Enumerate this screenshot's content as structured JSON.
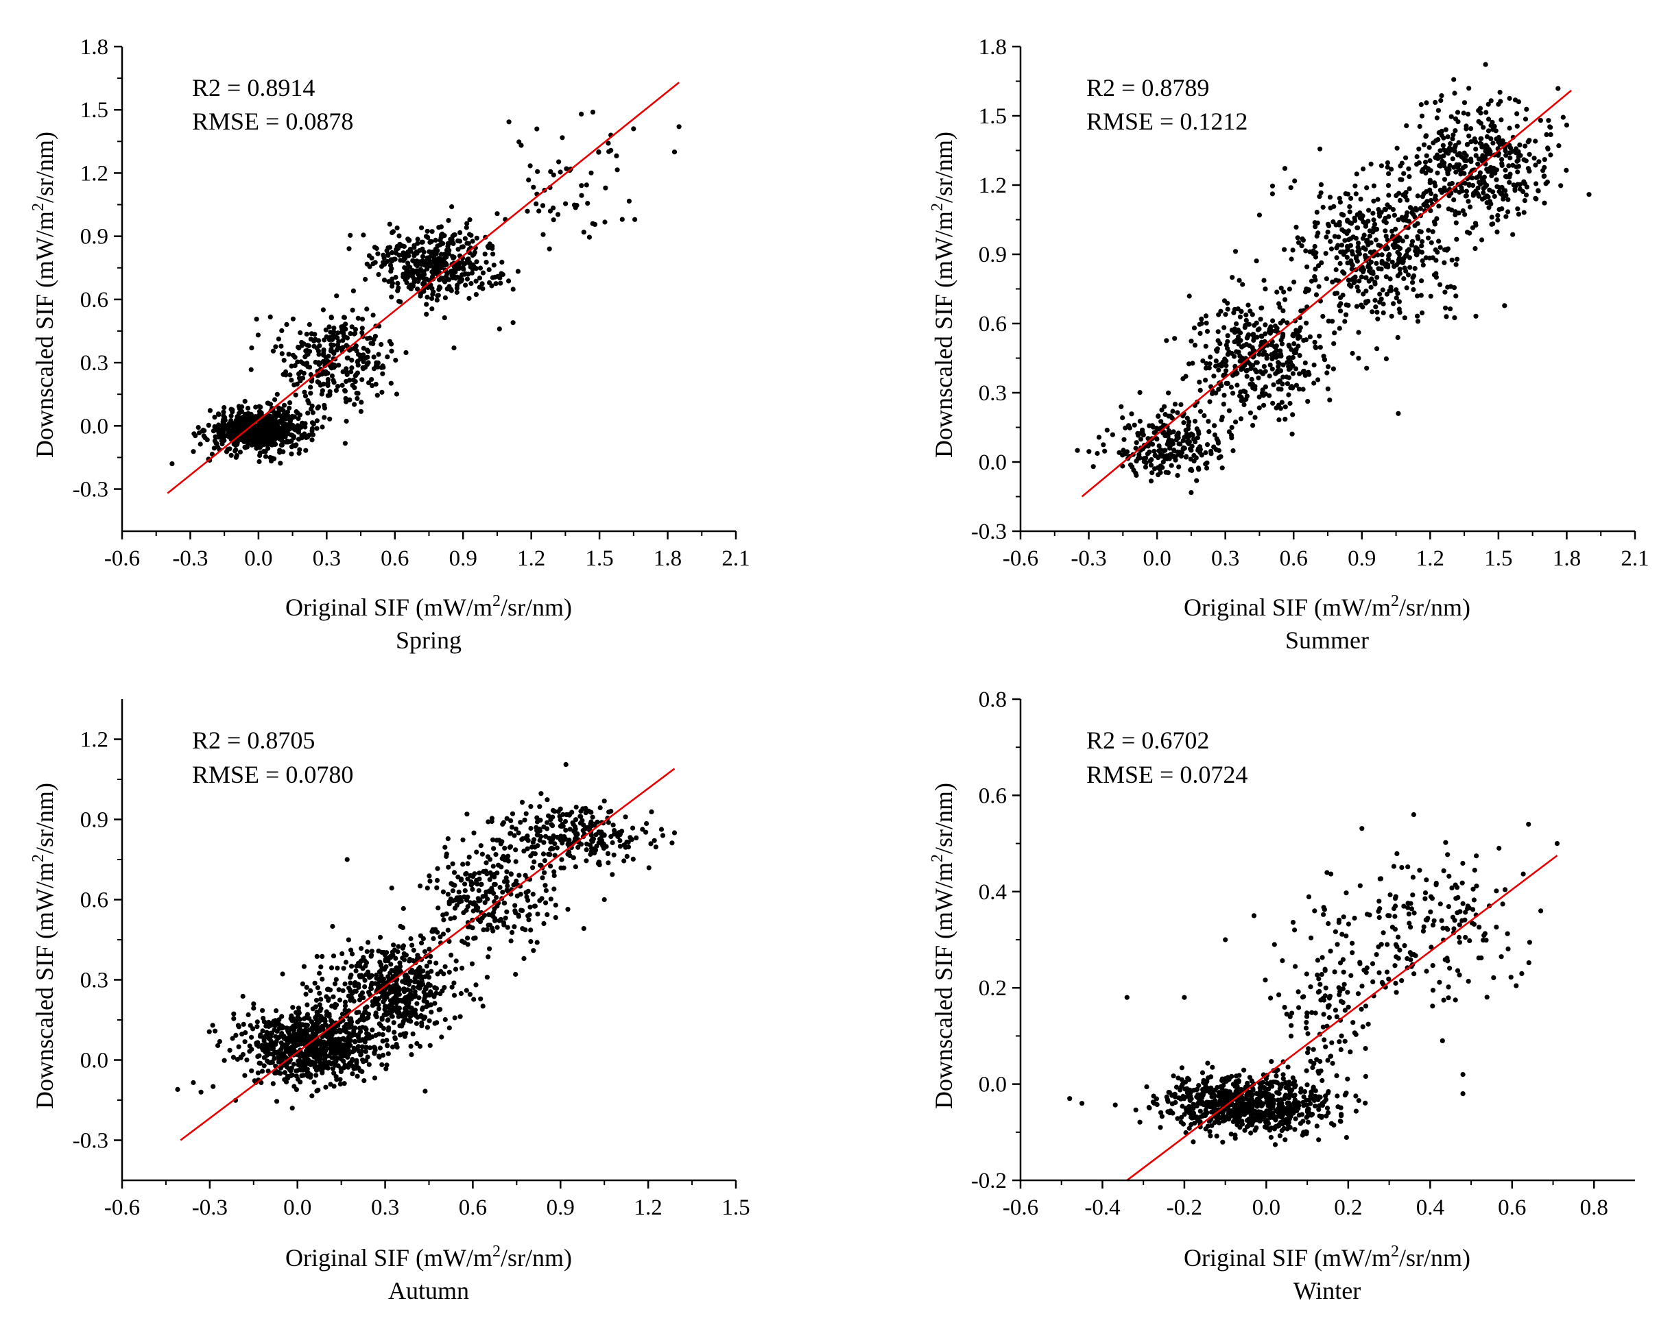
{
  "chart_data": [
    {
      "type": "scatter",
      "caption": "Spring",
      "xlabel": "Original SIF (mW/m²/sr/nm)",
      "ylabel": "Downscaled SIF (mW/m²/sr/nm)",
      "stats": {
        "r2": "R2 = 0.8914",
        "rmse": "RMSE = 0.0878"
      },
      "xlim": [
        -0.6,
        2.1
      ],
      "ylim": [
        -0.5,
        1.8
      ],
      "xticks": [
        -0.6,
        -0.3,
        0.0,
        0.3,
        0.6,
        0.9,
        1.2,
        1.5,
        1.8,
        2.1
      ],
      "xtick_labels": [
        "-0.6",
        "-0.3",
        "0.0",
        "0.3",
        "0.6",
        "0.9",
        "1.2",
        "1.5",
        "1.8",
        "2.1"
      ],
      "yticks": [
        -0.3,
        0.0,
        0.3,
        0.6,
        0.9,
        1.2,
        1.5,
        1.8
      ],
      "ytick_labels": [
        "-0.3",
        "0.0",
        "0.3",
        "0.6",
        "0.9",
        "1.2",
        "1.5",
        "1.8"
      ],
      "fit_line": {
        "x": [
          -0.4,
          1.85
        ],
        "y": [
          -0.32,
          1.63
        ]
      },
      "clusters": [
        {
          "cx": 0.0,
          "cy": -0.02,
          "sx": 0.11,
          "sy": 0.05,
          "n": 650
        },
        {
          "cx": 0.35,
          "cy": 0.32,
          "sx": 0.12,
          "sy": 0.12,
          "n": 300
        },
        {
          "cx": 0.78,
          "cy": 0.77,
          "sx": 0.14,
          "sy": 0.08,
          "n": 420
        },
        {
          "cx": 1.35,
          "cy": 1.15,
          "sx": 0.2,
          "sy": 0.17,
          "n": 55
        }
      ],
      "points": [
        [
          1.42,
          1.48
        ],
        [
          1.85,
          1.42
        ],
        [
          1.83,
          1.3
        ],
        [
          1.65,
          1.41
        ],
        [
          1.55,
          1.38
        ],
        [
          1.6,
          0.98
        ],
        [
          1.47,
          0.96
        ],
        [
          1.28,
          0.84
        ],
        [
          1.12,
          0.49
        ],
        [
          1.06,
          0.46
        ],
        [
          0.86,
          0.37
        ],
        [
          -0.38,
          -0.18
        ],
        [
          0.85,
          1.04
        ],
        [
          -0.03,
          0.37
        ]
      ]
    },
    {
      "type": "scatter",
      "caption": "Summer",
      "xlabel": "Original SIF (mW/m²/sr/nm)",
      "ylabel": "Downscaled SIF (mW/m²/sr/nm)",
      "stats": {
        "r2": "R2 = 0.8789",
        "rmse": "RMSE = 0.1212"
      },
      "xlim": [
        -0.6,
        2.1
      ],
      "ylim": [
        -0.3,
        1.8
      ],
      "xticks": [
        -0.6,
        -0.3,
        0.0,
        0.3,
        0.6,
        0.9,
        1.2,
        1.5,
        1.8,
        2.1
      ],
      "xtick_labels": [
        "-0.6",
        "-0.3",
        "0.0",
        "0.3",
        "0.6",
        "0.9",
        "1.2",
        "1.5",
        "1.8",
        "2.1"
      ],
      "yticks": [
        -0.3,
        0.0,
        0.3,
        0.6,
        0.9,
        1.2,
        1.5,
        1.8
      ],
      "ytick_labels": [
        "-0.3",
        "0.0",
        "0.3",
        "0.6",
        "0.9",
        "1.2",
        "1.5",
        "1.8"
      ],
      "fit_line": {
        "x": [
          -0.33,
          1.82
        ],
        "y": [
          -0.15,
          1.61
        ]
      },
      "clusters": [
        {
          "cx": 0.05,
          "cy": 0.08,
          "sx": 0.12,
          "sy": 0.07,
          "n": 260
        },
        {
          "cx": 0.45,
          "cy": 0.45,
          "sx": 0.15,
          "sy": 0.13,
          "n": 380
        },
        {
          "cx": 0.95,
          "cy": 0.9,
          "sx": 0.18,
          "sy": 0.16,
          "n": 460
        },
        {
          "cx": 1.4,
          "cy": 1.28,
          "sx": 0.17,
          "sy": 0.13,
          "n": 430
        }
      ],
      "points": [
        [
          1.06,
          0.21
        ],
        [
          0.45,
          1.07
        ],
        [
          1.8,
          1.46
        ],
        [
          1.72,
          1.48
        ],
        [
          -0.35,
          0.05
        ],
        [
          -0.28,
          -0.02
        ],
        [
          1.5,
          1.55
        ]
      ]
    },
    {
      "type": "scatter",
      "caption": "Autumn",
      "xlabel": "Original SIF (mW/m²/sr/nm)",
      "ylabel": "Downscaled SIF (mW/m²/sr/nm)",
      "stats": {
        "r2": "R2 = 0.8705",
        "rmse": "RMSE = 0.0780"
      },
      "xlim": [
        -0.6,
        1.5
      ],
      "ylim": [
        -0.45,
        1.35
      ],
      "xticks": [
        -0.6,
        -0.3,
        0.0,
        0.3,
        0.6,
        0.9,
        1.2,
        1.5
      ],
      "xtick_labels": [
        "-0.6",
        "-0.3",
        "0.0",
        "0.3",
        "0.6",
        "0.9",
        "1.2",
        "1.5"
      ],
      "yticks": [
        -0.3,
        0.0,
        0.3,
        0.6,
        0.9,
        1.2
      ],
      "ytick_labels": [
        "-0.3",
        "0.0",
        "0.3",
        "0.6",
        "0.9",
        "1.2"
      ],
      "fit_line": {
        "x": [
          -0.4,
          1.29
        ],
        "y": [
          -0.3,
          1.09
        ]
      },
      "clusters": [
        {
          "cx": 0.05,
          "cy": 0.05,
          "sx": 0.12,
          "sy": 0.07,
          "n": 800
        },
        {
          "cx": 0.32,
          "cy": 0.27,
          "sx": 0.11,
          "sy": 0.09,
          "n": 500
        },
        {
          "cx": 0.65,
          "cy": 0.6,
          "sx": 0.12,
          "sy": 0.1,
          "n": 260
        },
        {
          "cx": 0.95,
          "cy": 0.84,
          "sx": 0.13,
          "sy": 0.06,
          "n": 260
        }
      ],
      "points": [
        [
          0.17,
          0.75
        ],
        [
          0.58,
          0.92
        ],
        [
          0.12,
          0.5
        ],
        [
          -0.41,
          -0.11
        ],
        [
          -0.33,
          -0.12
        ],
        [
          0.82,
          0.44
        ],
        [
          1.29,
          0.85
        ],
        [
          1.25,
          0.84
        ],
        [
          1.05,
          0.6
        ],
        [
          0.52,
          0.12
        ],
        [
          -0.29,
          0.13
        ],
        [
          -0.15,
          0.21
        ]
      ]
    },
    {
      "type": "scatter",
      "caption": "Winter",
      "xlabel": "Original SIF (mW/m²/sr/nm)",
      "ylabel": "Downscaled SIF (mW/m²/sr/nm)",
      "stats": {
        "r2": "R2 = 0.6702",
        "rmse": "RMSE = 0.0724"
      },
      "xlim": [
        -0.6,
        0.9
      ],
      "ylim": [
        -0.2,
        0.8
      ],
      "xticks": [
        -0.6,
        -0.4,
        -0.2,
        0.0,
        0.2,
        0.4,
        0.6,
        0.8
      ],
      "xtick_labels": [
        "-0.6",
        "-0.4",
        "-0.2",
        "0.0",
        "0.2",
        "0.4",
        "0.6",
        "0.8"
      ],
      "yticks": [
        -0.2,
        0.0,
        0.2,
        0.4,
        0.6,
        0.8
      ],
      "ytick_labels": [
        "-0.2",
        "0.0",
        "0.2",
        "0.4",
        "0.6",
        "0.8"
      ],
      "fit_line": {
        "x": [
          -0.34,
          0.71
        ],
        "y": [
          -0.2,
          0.475
        ]
      },
      "clusters": [
        {
          "cx": -0.05,
          "cy": -0.04,
          "sx": 0.1,
          "sy": 0.03,
          "n": 750
        },
        {
          "cx": 0.15,
          "cy": 0.15,
          "sx": 0.07,
          "sy": 0.08,
          "n": 110
        },
        {
          "cx": 0.38,
          "cy": 0.33,
          "sx": 0.12,
          "sy": 0.08,
          "n": 200
        }
      ],
      "points": [
        [
          -0.34,
          0.18
        ],
        [
          -0.48,
          -0.03
        ],
        [
          -0.45,
          -0.04
        ],
        [
          0.36,
          0.56
        ],
        [
          0.64,
          0.54
        ],
        [
          0.71,
          0.5
        ],
        [
          0.67,
          0.36
        ],
        [
          0.48,
          0.02
        ],
        [
          0.48,
          -0.02
        ],
        [
          0.43,
          0.09
        ],
        [
          -0.03,
          0.35
        ],
        [
          -0.1,
          0.3
        ],
        [
          -0.2,
          0.18
        ],
        [
          0.02,
          0.29
        ]
      ]
    }
  ]
}
